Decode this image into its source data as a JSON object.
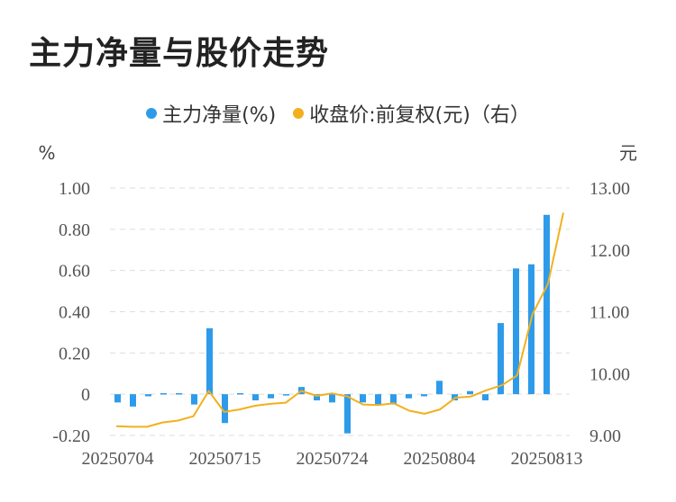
{
  "title": "主力净量与股价走势",
  "legend": {
    "series1": "主力净量(%)",
    "series2": "收盘价:前复权(元)（右）"
  },
  "colors": {
    "bar": "#2E9BEA",
    "line": "#F2B01E",
    "grid": "#dddddd"
  },
  "chart_data": {
    "type": "bar",
    "title": "主力净量与股价走势",
    "y_left_unit": "%",
    "y_right_unit": "元",
    "y_left_ticks": [
      "1.00",
      "0.80",
      "0.60",
      "0.40",
      "0.20",
      "0",
      "-0.20"
    ],
    "y_right_ticks": [
      "13.00",
      "12.00",
      "11.00",
      "10.00",
      "9.00"
    ],
    "ylim_left": [
      -0.2,
      1.0
    ],
    "ylim_right": [
      9.0,
      13.0
    ],
    "x_labels": [
      "20250704",
      "20250715",
      "20250724",
      "20250804",
      "20250813"
    ],
    "x_label_indices": [
      0,
      7,
      14,
      21,
      28
    ],
    "grid": true,
    "series": [
      {
        "name": "主力净量(%)",
        "type": "bar",
        "axis": "left",
        "values": [
          -0.04,
          -0.06,
          -0.01,
          0.005,
          0.005,
          -0.05,
          0.32,
          -0.14,
          0.005,
          -0.03,
          -0.02,
          -0.005,
          0.035,
          -0.03,
          -0.04,
          -0.19,
          -0.04,
          -0.05,
          -0.05,
          -0.02,
          -0.01,
          0.065,
          -0.03,
          0.015,
          -0.03,
          0.345,
          0.61,
          0.63,
          0.87
        ]
      },
      {
        "name": "收盘价:前复权(元)（右）",
        "type": "line",
        "axis": "right",
        "values": [
          9.15,
          9.14,
          9.14,
          9.21,
          9.24,
          9.31,
          9.72,
          9.38,
          9.42,
          9.48,
          9.51,
          9.53,
          9.72,
          9.64,
          9.68,
          9.63,
          9.5,
          9.49,
          9.52,
          9.4,
          9.35,
          9.42,
          9.61,
          9.63,
          9.73,
          9.81,
          9.97,
          10.96,
          11.45,
          12.6
        ]
      }
    ]
  }
}
